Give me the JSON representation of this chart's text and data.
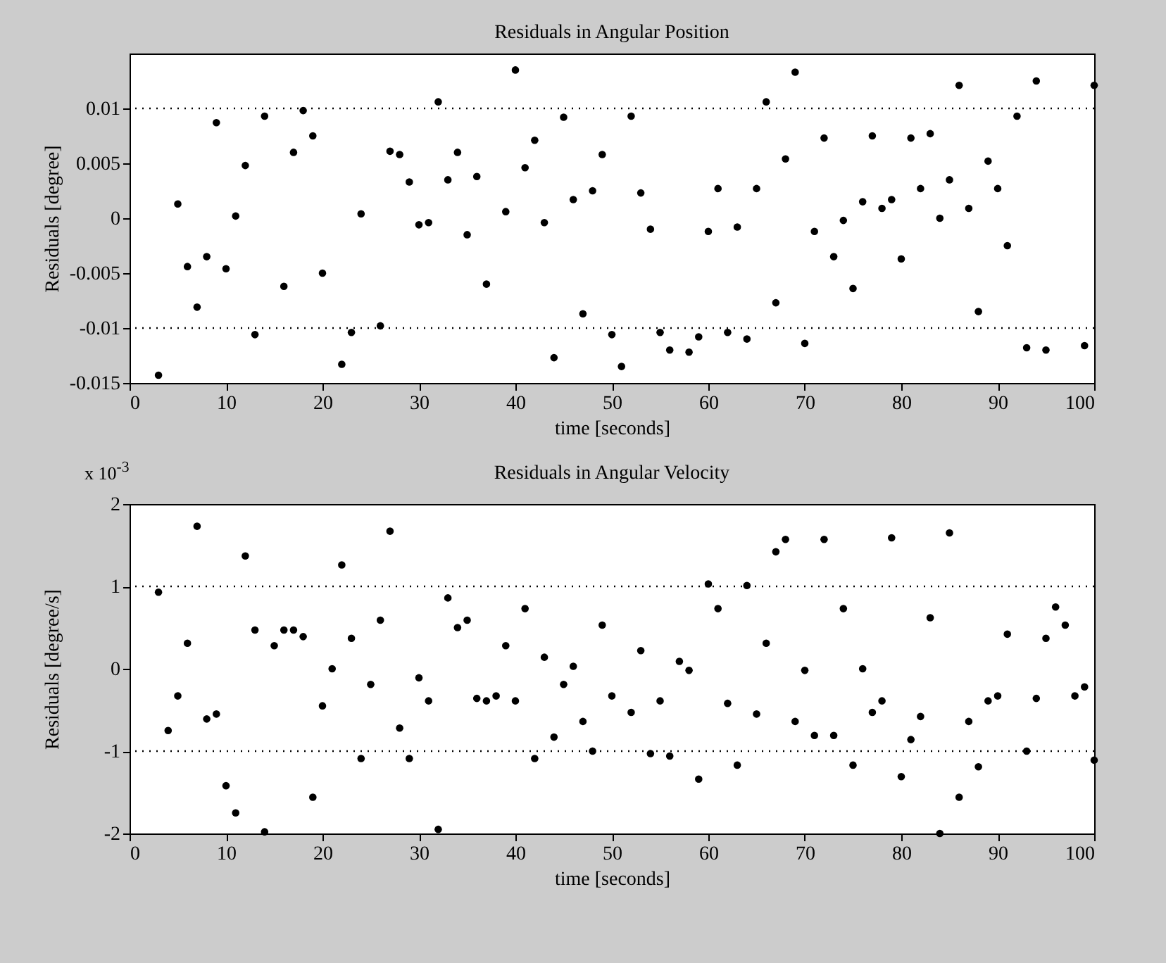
{
  "chart_data": [
    {
      "type": "scatter",
      "title": "Residuals in Angular Position",
      "xlabel": "time [seconds]",
      "ylabel": "Residuals [degree]",
      "marker": "circle",
      "grid": false,
      "xlim": [
        0,
        100
      ],
      "xticks": [
        0,
        10,
        20,
        30,
        40,
        50,
        60,
        70,
        80,
        90,
        100
      ],
      "ylim": [
        -0.015,
        0.015
      ],
      "yticks": [
        -0.015,
        -0.01,
        -0.005,
        0,
        0.005,
        0.01
      ],
      "ref_lines": [
        {
          "axis": "y",
          "value": 0.01,
          "color": "#000000",
          "line_style": "dotted"
        },
        {
          "axis": "y",
          "value": -0.01,
          "color": "#000000",
          "line_style": "dotted"
        }
      ],
      "series": [
        {
          "color": "#000000",
          "x": [
            3,
            5,
            6,
            7,
            8,
            9,
            10,
            11,
            12,
            13,
            14,
            16,
            17,
            18,
            19,
            20,
            22,
            23,
            24,
            26,
            27,
            28,
            29,
            30,
            31,
            32,
            33,
            34,
            35,
            36,
            37,
            39,
            40,
            41,
            42,
            43,
            44,
            45,
            46,
            47,
            48,
            49,
            50,
            51,
            52,
            53,
            54,
            55,
            56,
            58,
            59,
            60,
            61,
            62,
            63,
            64,
            65,
            66,
            67,
            68,
            69,
            70,
            71,
            72,
            73,
            74,
            75,
            76,
            77,
            78,
            79,
            80,
            81,
            82,
            83,
            84,
            85,
            86,
            87,
            88,
            89,
            90,
            91,
            92,
            93,
            94,
            95,
            99,
            100
          ],
          "values": [
            -0.0143,
            0.0013,
            -0.0044,
            -0.0081,
            -0.0035,
            0.0087,
            -0.0046,
            0.0002,
            0.0048,
            -0.0106,
            0.0093,
            -0.0062,
            0.006,
            0.0098,
            0.0075,
            -0.005,
            -0.0133,
            -0.0104,
            0.0004,
            -0.0098,
            0.0061,
            0.0058,
            0.0033,
            -0.0006,
            -0.0004,
            0.0106,
            0.0035,
            0.006,
            -0.0015,
            0.0038,
            -0.006,
            0.0006,
            0.0135,
            0.0046,
            0.0071,
            -0.0004,
            -0.0127,
            0.0092,
            0.0017,
            -0.0087,
            0.0025,
            0.0058,
            -0.0106,
            -0.0135,
            0.0093,
            0.0023,
            -0.001,
            -0.0104,
            -0.012,
            -0.0122,
            -0.0108,
            -0.0012,
            0.0027,
            -0.0104,
            -0.0008,
            -0.011,
            0.0027,
            0.0106,
            -0.0077,
            0.0054,
            0.0133,
            -0.0114,
            -0.0012,
            0.0073,
            -0.0035,
            -0.0002,
            -0.0064,
            0.0015,
            0.0075,
            0.0009,
            0.0017,
            -0.0037,
            0.0073,
            0.0027,
            0.0077,
            0,
            0.0035,
            0.0121,
            0.0009,
            -0.0085,
            0.0052,
            0.0027,
            -0.0025,
            0.0093,
            -0.0118,
            0.0125,
            -0.012,
            -0.0116,
            0.0121
          ]
        }
      ]
    },
    {
      "type": "scatter",
      "title": "Residuals in Angular Velocity",
      "xlabel": "time [seconds]",
      "ylabel": "Residuals [degree/s]",
      "marker": "circle",
      "grid": false,
      "annotations": [
        "x 10$^{-3}$"
      ],
      "xlim": [
        0,
        100
      ],
      "xticks": [
        0,
        10,
        20,
        30,
        40,
        50,
        60,
        70,
        80,
        90,
        100
      ],
      "ylim": [
        -2,
        2
      ],
      "yticks": [
        -2,
        -1,
        0,
        1,
        2
      ],
      "ref_lines": [
        {
          "axis": "y",
          "value": 1,
          "color": "#000000",
          "line_style": "dotted"
        },
        {
          "axis": "y",
          "value": -1,
          "color": "#000000",
          "line_style": "dotted"
        }
      ],
      "series": [
        {
          "color": "#000000",
          "x": [
            3,
            4,
            5,
            6,
            7,
            8,
            9,
            10,
            11,
            12,
            13,
            14,
            15,
            16,
            17,
            18,
            19,
            20,
            21,
            22,
            23,
            24,
            25,
            26,
            27,
            28,
            29,
            30,
            31,
            32,
            33,
            34,
            35,
            36,
            37,
            38,
            39,
            40,
            41,
            42,
            43,
            44,
            45,
            46,
            47,
            48,
            49,
            50,
            52,
            53,
            54,
            55,
            56,
            57,
            58,
            59,
            60,
            61,
            62,
            63,
            64,
            65,
            66,
            67,
            68,
            69,
            70,
            71,
            72,
            73,
            74,
            75,
            76,
            77,
            78,
            79,
            80,
            81,
            82,
            83,
            84,
            85,
            86,
            87,
            88,
            89,
            90,
            91,
            93,
            94,
            95,
            96,
            97,
            98,
            99,
            100
          ],
          "values": [
            0.93,
            -0.75,
            -0.33,
            0.31,
            1.73,
            -0.61,
            -0.55,
            -1.42,
            -1.75,
            1.37,
            0.47,
            -1.98,
            0.28,
            0.47,
            0.47,
            0.39,
            -1.56,
            -0.45,
            0,
            1.26,
            0.37,
            -1.09,
            -0.19,
            0.59,
            1.67,
            -0.72,
            -1.09,
            -0.11,
            -0.39,
            -1.95,
            0.86,
            0.5,
            0.59,
            -0.36,
            -0.39,
            -0.33,
            0.28,
            -0.39,
            0.73,
            -1.09,
            0.14,
            -0.83,
            -0.19,
            0.03,
            -0.64,
            -1.0,
            0.53,
            -0.33,
            -0.53,
            0.22,
            -1.03,
            -0.39,
            -1.06,
            0.09,
            -0.02,
            -1.34,
            1.03,
            0.73,
            -0.42,
            -1.17,
            1.01,
            -0.55,
            0.31,
            1.42,
            1.57,
            -0.64,
            -0.02,
            -0.81,
            1.57,
            -0.81,
            0.73,
            -1.17,
            0,
            -0.53,
            -0.39,
            1.59,
            -1.31,
            -0.86,
            -0.58,
            0.62,
            -2.0,
            1.65,
            -1.56,
            -0.64,
            -1.19,
            -0.39,
            -0.33,
            0.42,
            -1.0,
            -0.36,
            0.37,
            0.75,
            0.53,
            -0.33,
            -0.22,
            -1.11
          ]
        }
      ]
    }
  ]
}
